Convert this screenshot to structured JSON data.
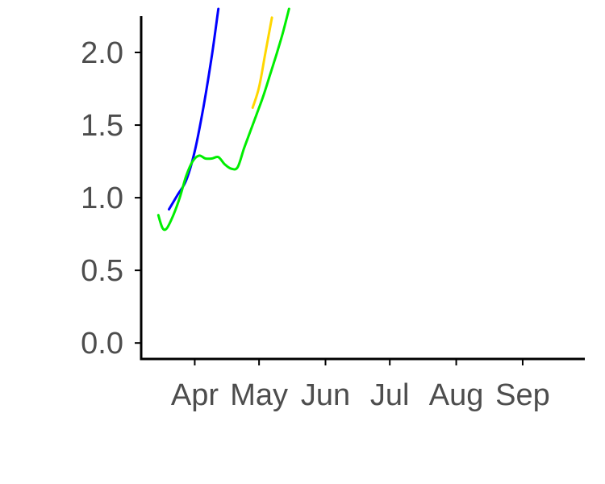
{
  "chart_data": {
    "type": "line",
    "title": "",
    "xlabel": "",
    "ylabel": "",
    "x_axis": {
      "type": "date",
      "range": [
        "2020-03-07",
        "2020-09-30"
      ],
      "ticks": [
        "2020-04-01",
        "2020-05-01",
        "2020-06-01",
        "2020-07-01",
        "2020-08-01",
        "2020-09-01"
      ],
      "tick_labels": [
        "Apr",
        "May",
        "Jun",
        "Jul",
        "Aug",
        "Sep"
      ]
    },
    "y_axis": {
      "range": [
        -0.11,
        2.25
      ],
      "ticks": [
        0.0,
        0.5,
        1.0,
        1.5,
        2.0
      ],
      "tick_labels": [
        "0.0",
        "0.5",
        "1.0",
        "1.5",
        "2.0"
      ]
    },
    "grid": false,
    "legend": "none",
    "series": [
      {
        "color": "#0000ff",
        "x": [
          "2020-03-20",
          "2020-03-24",
          "2020-03-28",
          "2020-04-01",
          "2020-04-05",
          "2020-04-09",
          "2020-04-12"
        ],
        "y": [
          0.92,
          1.02,
          1.12,
          1.32,
          1.62,
          1.98,
          2.3
        ]
      },
      {
        "color": "#ffd700",
        "x": [
          "2020-04-28",
          "2020-05-01",
          "2020-05-04",
          "2020-05-07"
        ],
        "y": [
          1.62,
          1.76,
          2.0,
          2.24
        ]
      },
      {
        "color": "#00ee00",
        "x": [
          "2020-03-15",
          "2020-03-17",
          "2020-03-19",
          "2020-03-22",
          "2020-03-25",
          "2020-03-28",
          "2020-03-31",
          "2020-04-03",
          "2020-04-06",
          "2020-04-09",
          "2020-04-12",
          "2020-04-15",
          "2020-04-18",
          "2020-04-21",
          "2020-04-24",
          "2020-04-27",
          "2020-04-30",
          "2020-05-03",
          "2020-05-06",
          "2020-05-09",
          "2020-05-12",
          "2020-05-15"
        ],
        "y": [
          0.88,
          0.79,
          0.79,
          0.88,
          1.0,
          1.15,
          1.25,
          1.29,
          1.27,
          1.27,
          1.28,
          1.23,
          1.2,
          1.21,
          1.34,
          1.46,
          1.58,
          1.7,
          1.84,
          1.98,
          2.13,
          2.3
        ]
      }
    ]
  }
}
